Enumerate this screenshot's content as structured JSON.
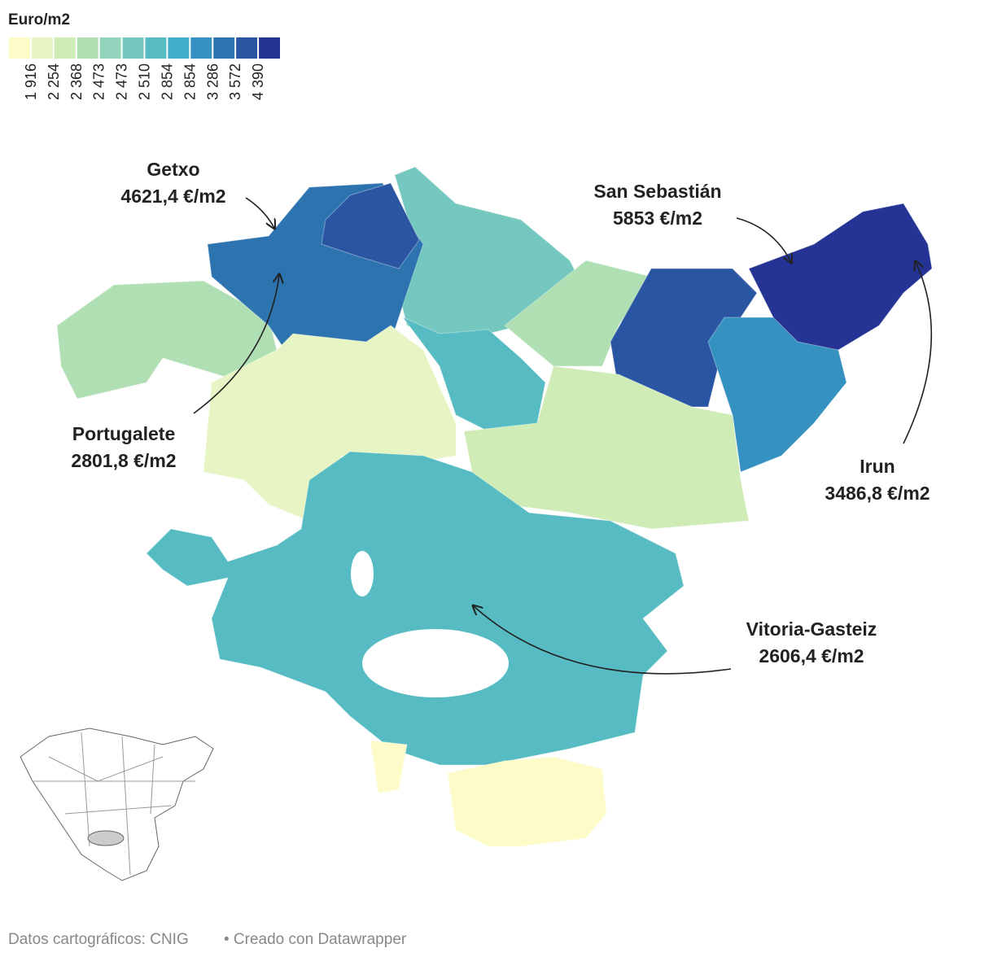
{
  "legend": {
    "title": "Euro/m2",
    "colors": [
      "#fdfcc8",
      "#e6f5c3",
      "#cfebb6",
      "#b1dfb4",
      "#92d4bc",
      "#74c8c0",
      "#56bbc2",
      "#40adc9",
      "#3592c0",
      "#2c73b0",
      "#2a55a2",
      "#253494"
    ],
    "labels": [
      "1 916",
      "2 254",
      "2 368",
      "2 473",
      "2 473",
      "2 510",
      "2 854",
      "2 854",
      "3 286",
      "3 572",
      "4 390"
    ]
  },
  "annotations": [
    {
      "name": "Getxo",
      "value": "4621,4 €/m2"
    },
    {
      "name": "San Sebastián",
      "value": "5853 €/m2"
    },
    {
      "name": "Portugalete",
      "value": "2801,8 €/m2"
    },
    {
      "name": "Irun",
      "value": "3486,8 €/m2"
    },
    {
      "name": "Vitoria-Gasteiz",
      "value": "2606,4 €/m2"
    }
  ],
  "footer": {
    "source": "Datos cartográficos: CNIG",
    "credit": "• Creado con Datawrapper"
  }
}
